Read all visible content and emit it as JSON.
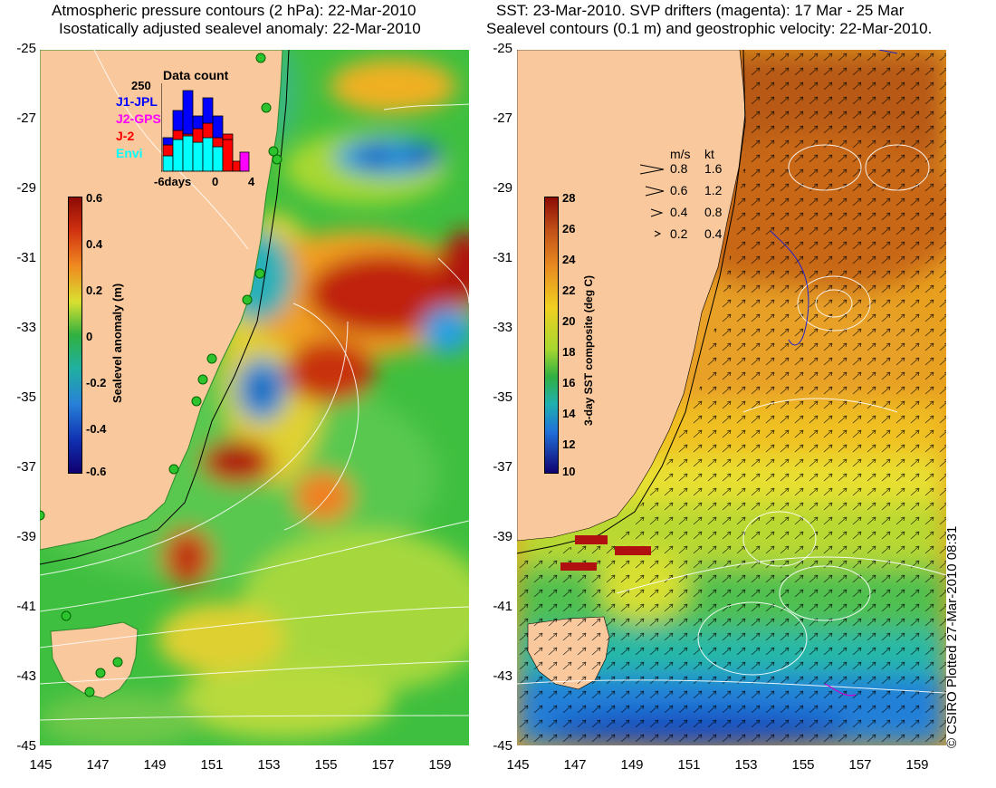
{
  "left_title": {
    "line1": "Atmospheric pressure contours (2 hPa): 22-Mar-2010",
    "line2": "Isostatically adjusted sealevel anomaly: 22-Mar-2010"
  },
  "right_title": {
    "line1": "SST: 23-Mar-2010. SVP drifters (magenta): 17 Mar - 25 Mar",
    "line2": "Sealevel contours (0.1 m) and geostrophic velocity: 22-Mar-2010."
  },
  "y_ticks": [
    "-25",
    "-27",
    "-29",
    "-31",
    "-33",
    "-35",
    "-37",
    "-39",
    "-41",
    "-43",
    "-45"
  ],
  "x_ticks": [
    "145",
    "147",
    "149",
    "151",
    "153",
    "155",
    "157",
    "159"
  ],
  "left_colorbar": {
    "label": "Sealevel anomaly (m)",
    "ticks": [
      "0.6",
      "0.4",
      "0.2",
      "0",
      "-0.2",
      "-0.4",
      "-0.6"
    ]
  },
  "right_colorbar": {
    "label": "3-day SST composite (deg C)",
    "ticks": [
      "28",
      "26",
      "24",
      "22",
      "20",
      "18",
      "16",
      "14",
      "12",
      "10"
    ]
  },
  "data_count": {
    "title": "Data count",
    "ymax_label": "250",
    "missions": [
      {
        "name": "J1-JPL",
        "color": "#0000ff"
      },
      {
        "name": "J2-GPS",
        "color": "#ff00ff"
      },
      {
        "name": "J-2",
        "color": "#ff0000"
      },
      {
        "name": "Envi",
        "color": "#00ffff"
      }
    ],
    "x_labels": [
      "-6days",
      "0",
      "4"
    ]
  },
  "velocity_legend": {
    "header_ms": "m/s",
    "header_kt": "kt",
    "rows": [
      {
        "ms": "0.8",
        "kt": "1.6"
      },
      {
        "ms": "0.6",
        "kt": "1.2"
      },
      {
        "ms": "0.4",
        "kt": "0.8"
      },
      {
        "ms": "0.2",
        "kt": "0.4"
      }
    ]
  },
  "credit": "© CSIRO Plotted 27-Mar-2010 08:31"
}
